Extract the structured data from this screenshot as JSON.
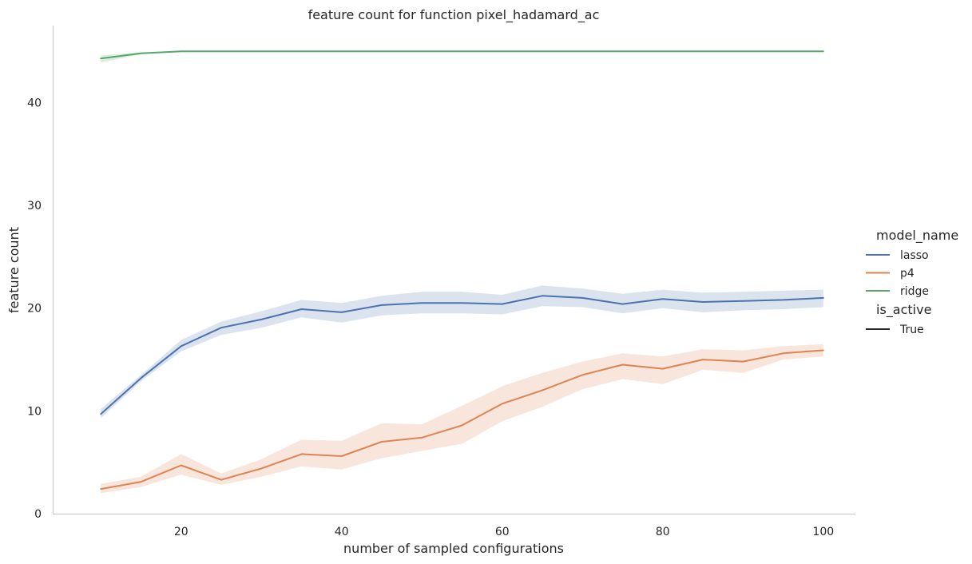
{
  "chart_data": {
    "type": "line",
    "title": "feature count for function pixel_hadamard_ac",
    "xlabel": "number of sampled configurations",
    "ylabel": "feature count",
    "xlim": [
      4,
      104
    ],
    "ylim": [
      0,
      47.5
    ],
    "xticks": [
      20,
      40,
      60,
      80,
      100
    ],
    "yticks": [
      0,
      10,
      20,
      30,
      40
    ],
    "grid": false,
    "legend": {
      "placement": "right",
      "hue_title": "model_name",
      "style_title": "is_active",
      "style_entries": [
        {
          "label": "True",
          "color": "#262626"
        }
      ]
    },
    "x": [
      10,
      15,
      20,
      25,
      30,
      35,
      40,
      45,
      50,
      55,
      60,
      65,
      70,
      75,
      80,
      85,
      90,
      95,
      100
    ],
    "series": [
      {
        "name": "lasso",
        "color": "#4c72b0",
        "values": [
          9.7,
          13.2,
          16.3,
          18.1,
          18.9,
          19.9,
          19.6,
          20.3,
          20.5,
          20.5,
          20.4,
          21.2,
          21.0,
          20.4,
          20.9,
          20.6,
          20.7,
          20.8,
          21.0
        ],
        "ci_low": [
          9.3,
          12.9,
          15.8,
          17.4,
          18.1,
          19.1,
          18.6,
          19.3,
          19.5,
          19.5,
          19.4,
          20.2,
          20.1,
          19.5,
          20.0,
          19.6,
          19.8,
          19.9,
          20.1
        ],
        "ci_high": [
          10.2,
          13.5,
          16.9,
          18.7,
          19.7,
          20.8,
          20.5,
          21.2,
          21.6,
          21.6,
          21.3,
          22.2,
          21.9,
          21.4,
          21.8,
          21.5,
          21.6,
          21.7,
          21.8
        ]
      },
      {
        "name": "p4",
        "color": "#dd8452",
        "values": [
          2.4,
          3.1,
          4.7,
          3.3,
          4.4,
          5.8,
          5.6,
          7.0,
          7.4,
          8.6,
          10.7,
          12.0,
          13.5,
          14.5,
          14.1,
          15.0,
          14.8,
          15.6,
          15.9
        ],
        "ci_low": [
          2.0,
          2.6,
          3.8,
          2.8,
          3.6,
          4.6,
          4.3,
          5.4,
          6.1,
          6.8,
          9.0,
          10.4,
          12.1,
          13.1,
          12.6,
          14.0,
          13.7,
          15.0,
          15.3
        ],
        "ci_high": [
          2.9,
          3.6,
          5.8,
          3.9,
          5.3,
          7.2,
          7.1,
          8.8,
          8.7,
          10.5,
          12.4,
          13.7,
          14.8,
          15.6,
          15.3,
          16.0,
          15.9,
          16.3,
          16.5
        ]
      },
      {
        "name": "ridge",
        "color": "#55a868",
        "values": [
          44.3,
          44.8,
          45.0,
          45.0,
          45.0,
          45.0,
          45.0,
          45.0,
          45.0,
          45.0,
          45.0,
          45.0,
          45.0,
          45.0,
          45.0,
          45.0,
          45.0,
          45.0,
          45.0
        ],
        "ci_low": [
          43.9,
          44.7,
          45.0,
          45.0,
          45.0,
          45.0,
          45.0,
          45.0,
          45.0,
          45.0,
          45.0,
          45.0,
          45.0,
          45.0,
          45.0,
          45.0,
          45.0,
          45.0,
          45.0
        ],
        "ci_high": [
          44.6,
          44.9,
          45.0,
          45.0,
          45.0,
          45.0,
          45.0,
          45.0,
          45.0,
          45.0,
          45.0,
          45.0,
          45.0,
          45.0,
          45.0,
          45.0,
          45.0,
          45.0,
          45.0
        ]
      }
    ]
  }
}
